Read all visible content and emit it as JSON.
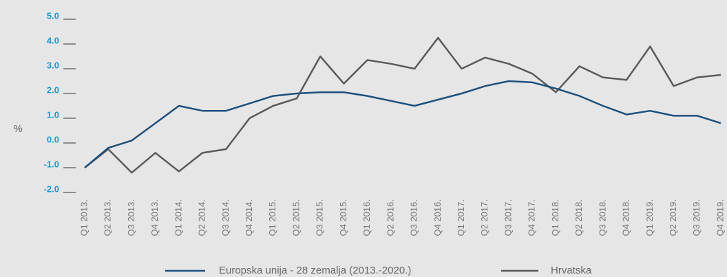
{
  "chart_data": {
    "type": "line",
    "y_label": "%",
    "categories": [
      "Q1 2013.",
      "Q2 2013.",
      "Q3 2013.",
      "Q4 2013.",
      "Q1 2014.",
      "Q2 2014.",
      "Q3 2014.",
      "Q4 2014.",
      "Q1 2015.",
      "Q2 2015.",
      "Q3 2015.",
      "Q4 2015.",
      "Q1 2016.",
      "Q2 2016.",
      "Q3 2016.",
      "Q4 2016.",
      "Q1 2017.",
      "Q2 2017.",
      "Q3 2017.",
      "Q4 2017.",
      "Q1 2018.",
      "Q2 2018.",
      "Q3 2018.",
      "Q4 2018.",
      "Q1 2019.",
      "Q2 2019.",
      "Q3 2019.",
      "Q4 2019."
    ],
    "series": [
      {
        "name": "Europska unija - 28 zemalja (2013.-2020.)",
        "color": "#1d4f7c",
        "values": [
          -1.0,
          -0.2,
          0.1,
          0.8,
          1.5,
          1.3,
          1.3,
          1.6,
          1.9,
          2.0,
          2.05,
          2.05,
          1.9,
          1.7,
          1.5,
          1.75,
          2.0,
          2.3,
          2.5,
          2.45,
          2.2,
          1.9,
          1.5,
          1.15,
          1.3,
          1.1,
          1.1,
          0.8
        ]
      },
      {
        "name": "Hrvatska",
        "color": "#5a5a5a",
        "values": [
          -1.0,
          -0.25,
          -1.2,
          -0.4,
          -1.15,
          -0.4,
          -0.25,
          1.0,
          1.5,
          1.8,
          3.5,
          2.4,
          3.35,
          3.2,
          3.0,
          4.25,
          3.0,
          3.45,
          3.2,
          2.8,
          2.05,
          3.1,
          2.65,
          2.55,
          3.9,
          2.3,
          2.65,
          2.75
        ]
      }
    ],
    "ylim": [
      -2,
      5
    ],
    "yticks": [
      {
        "value": 5,
        "label": "5.0"
      },
      {
        "value": 4,
        "label": "4.0"
      },
      {
        "value": 3,
        "label": "3.0"
      },
      {
        "value": 2,
        "label": "2.0"
      },
      {
        "value": 1,
        "label": "1.0"
      },
      {
        "value": 0,
        "label": "0.0"
      },
      {
        "value": -1,
        "label": "-1.0"
      },
      {
        "value": -2,
        "label": "-2.0"
      }
    ],
    "tick_color": "#1a9ad6"
  }
}
